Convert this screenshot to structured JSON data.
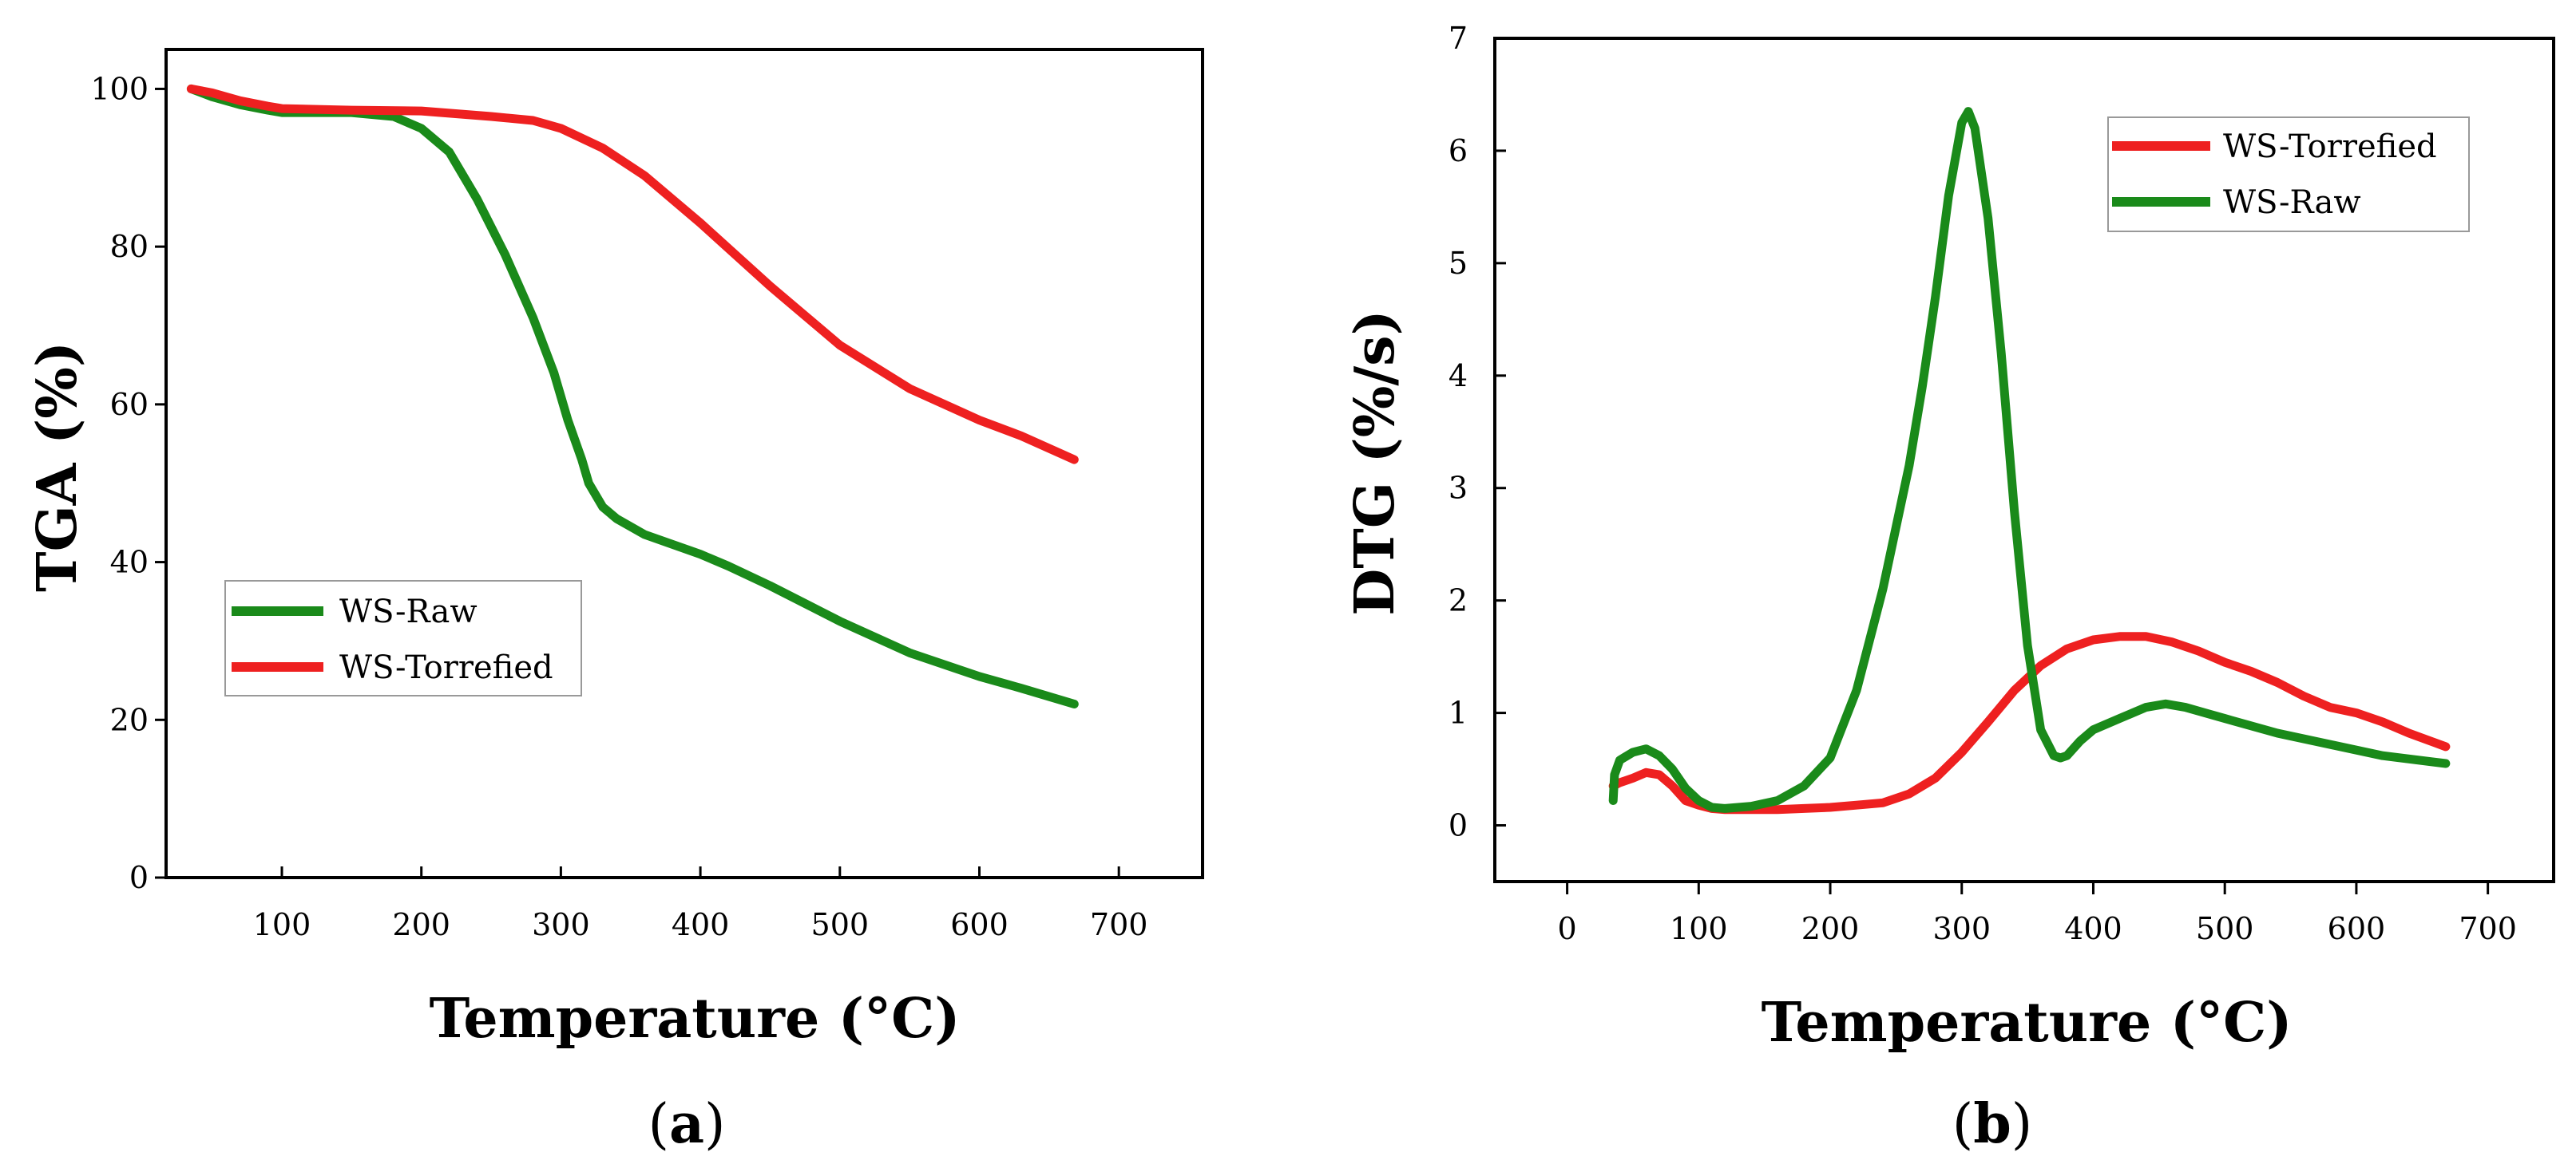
{
  "chart_data": [
    {
      "type": "line",
      "panel_label": "a",
      "xlabel": "Temperature (°C)",
      "ylabel": "TGA (%)",
      "xlim": [
        17,
        760
      ],
      "ylim": [
        0,
        105
      ],
      "xticks": [
        100,
        200,
        300,
        400,
        500,
        600,
        700
      ],
      "xtick_labels": [
        "100",
        "200",
        "300",
        "400",
        "500",
        "600",
        "700"
      ],
      "yticks": [
        0,
        20,
        40,
        60,
        80,
        100
      ],
      "ytick_labels": [
        "0",
        "20",
        "40",
        "60",
        "80",
        "100"
      ],
      "grid": false,
      "legend_position": "middle-left",
      "series": [
        {
          "name": "WS-Raw",
          "color": "#1a8a1a",
          "x": [
            35,
            50,
            70,
            90,
            100,
            120,
            150,
            180,
            200,
            220,
            240,
            260,
            280,
            295,
            305,
            315,
            320,
            330,
            340,
            360,
            400,
            420,
            450,
            500,
            550,
            600,
            630,
            668
          ],
          "y": [
            100,
            99,
            98,
            97.3,
            97,
            97,
            97,
            96.5,
            95,
            92,
            86,
            79,
            71,
            64,
            58,
            53,
            50,
            47,
            45.5,
            43.5,
            41,
            39.5,
            37,
            32.5,
            28.5,
            25.5,
            24,
            22
          ]
        },
        {
          "name": "WS-Torrefied",
          "color": "#ee2020",
          "x": [
            35,
            50,
            70,
            90,
            100,
            150,
            200,
            250,
            280,
            300,
            330,
            360,
            400,
            450,
            500,
            550,
            600,
            630,
            668
          ],
          "y": [
            100,
            99.5,
            98.5,
            97.8,
            97.5,
            97.3,
            97.2,
            96.5,
            96,
            95,
            92.5,
            89,
            83,
            75,
            67.5,
            62,
            58,
            56,
            53
          ]
        }
      ]
    },
    {
      "type": "line",
      "panel_label": "b",
      "xlabel": "Temperature (°C)",
      "ylabel": "DTG (%/s)",
      "xlim": [
        -55,
        750
      ],
      "ylim": [
        -0.5,
        7
      ],
      "xticks": [
        0,
        100,
        200,
        300,
        400,
        500,
        600,
        700
      ],
      "xtick_labels": [
        "0",
        "100",
        "200",
        "300",
        "400",
        "500",
        "600",
        "700"
      ],
      "yticks": [
        0,
        1,
        2,
        3,
        4,
        5,
        6,
        7
      ],
      "ytick_labels": [
        "0",
        "1",
        "2",
        "3",
        "4",
        "5",
        "6",
        "7"
      ],
      "grid": false,
      "legend_position": "top-right",
      "series": [
        {
          "name": "WS-Torrefied",
          "color": "#ee2020",
          "x": [
            35,
            40,
            50,
            60,
            70,
            80,
            90,
            100,
            110,
            120,
            140,
            160,
            180,
            200,
            220,
            240,
            260,
            280,
            300,
            320,
            340,
            360,
            380,
            400,
            420,
            440,
            460,
            480,
            500,
            520,
            540,
            560,
            580,
            600,
            620,
            640,
            668
          ],
          "y": [
            0.35,
            0.38,
            0.42,
            0.47,
            0.45,
            0.35,
            0.22,
            0.18,
            0.15,
            0.14,
            0.14,
            0.14,
            0.15,
            0.16,
            0.18,
            0.2,
            0.28,
            0.42,
            0.65,
            0.92,
            1.2,
            1.42,
            1.57,
            1.65,
            1.68,
            1.68,
            1.63,
            1.55,
            1.45,
            1.37,
            1.27,
            1.15,
            1.05,
            1.0,
            0.92,
            0.82,
            0.7
          ]
        },
        {
          "name": "WS-Raw",
          "color": "#1a8a1a",
          "x": [
            35,
            36,
            40,
            50,
            60,
            70,
            80,
            90,
            100,
            110,
            120,
            140,
            160,
            180,
            200,
            220,
            240,
            260,
            270,
            280,
            290,
            300,
            305,
            310,
            320,
            330,
            340,
            350,
            360,
            370,
            375,
            380,
            390,
            400,
            420,
            440,
            455,
            470,
            500,
            540,
            580,
            620,
            668
          ],
          "y": [
            0.22,
            0.45,
            0.58,
            0.65,
            0.68,
            0.62,
            0.5,
            0.33,
            0.22,
            0.16,
            0.15,
            0.17,
            0.22,
            0.35,
            0.6,
            1.2,
            2.1,
            3.2,
            3.9,
            4.7,
            5.6,
            6.25,
            6.35,
            6.2,
            5.4,
            4.2,
            2.8,
            1.6,
            0.85,
            0.62,
            0.6,
            0.62,
            0.75,
            0.85,
            0.95,
            1.05,
            1.08,
            1.05,
            0.95,
            0.82,
            0.72,
            0.62,
            0.55
          ]
        }
      ]
    }
  ]
}
